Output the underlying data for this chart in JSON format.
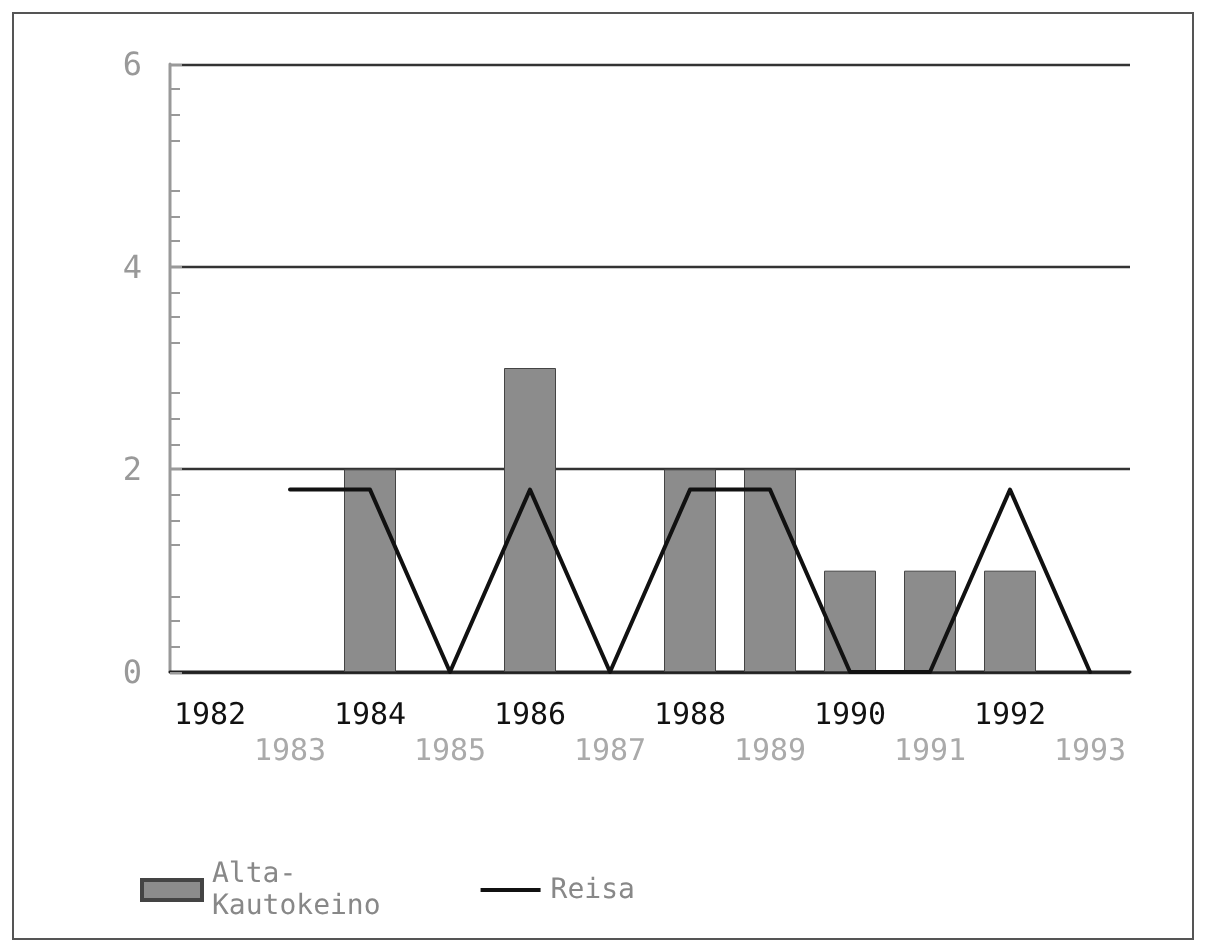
{
  "chart_data": {
    "type": "bar",
    "categories": [
      "1982",
      "1983",
      "1984",
      "1985",
      "1986",
      "1987",
      "1988",
      "1989",
      "1990",
      "1991",
      "1992",
      "1993"
    ],
    "series": [
      {
        "name": "Alta-Kautokeino",
        "color": "#8c8c8c",
        "values": [
          null,
          null,
          2,
          null,
          3,
          null,
          2,
          2,
          1,
          1,
          1,
          null
        ]
      },
      {
        "name": "Reisa",
        "type": "line",
        "color": "#111111",
        "values": [
          null,
          1.8,
          1.8,
          0,
          1.8,
          0,
          1.8,
          1.8,
          0,
          0,
          1.8,
          0
        ]
      }
    ],
    "ylim": [
      0,
      6
    ],
    "yticks": [
      0,
      2,
      4,
      6
    ],
    "grid": "y",
    "legend": "bottom left",
    "marker": "none",
    "line_style": "solid"
  }
}
